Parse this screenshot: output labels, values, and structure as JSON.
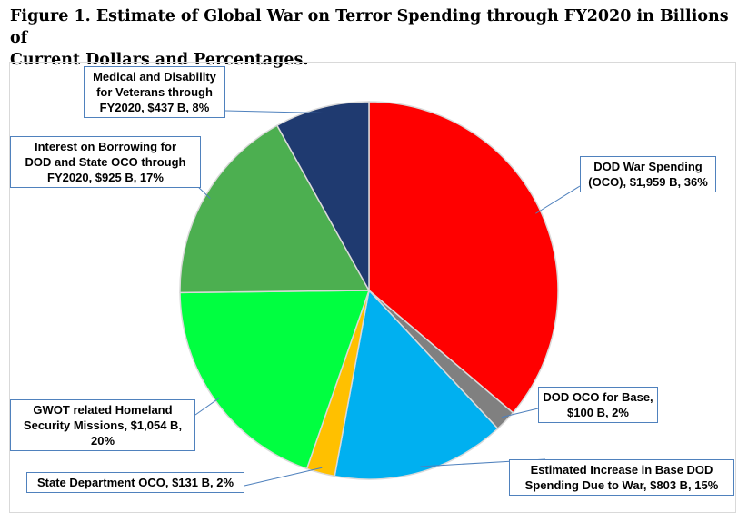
{
  "chart_data": {
    "type": "pie",
    "title": "Figure 1. Estimate of Global War on Terror Spending through FY2020 in Billions of Current Dollars and Percentages.",
    "title_lines": [
      "Figure 1. Estimate of Global War on Terror Spending through FY2020 in Billions of",
      "Current Dollars and Percentages."
    ],
    "start_angle_deg": 0,
    "direction": "clockwise",
    "slices": [
      {
        "name": "DOD War Spending (OCO)",
        "value": 1959,
        "percent": 36,
        "color": "#ff0000",
        "label_lines": [
          "DOD War Spending",
          "(OCO),  $1,959 B, 36%"
        ]
      },
      {
        "name": "DOD OCO for Base",
        "value": 100,
        "percent": 2,
        "color": "#808080",
        "label_lines": [
          "DOD OCO for Base,",
          "$100 B, 2%"
        ]
      },
      {
        "name": "Estimated Increase in Base DOD Spending Due to War",
        "value": 803,
        "percent": 15,
        "color": "#00b0f0",
        "label_lines": [
          "Estimated Increase in Base DOD",
          "Spending Due to War,  $803 B, 15%"
        ]
      },
      {
        "name": "State Department OCO",
        "value": 131,
        "percent": 2,
        "color": "#ffc000",
        "label_lines": [
          "State Department OCO,  $131 B, 2%"
        ]
      },
      {
        "name": "GWOT related Homeland Security Missions",
        "value": 1054,
        "percent": 20,
        "color": "#00ff40",
        "label_lines": [
          "GWOT related Homeland",
          "Security Missions,  $1,054 B,",
          "20%"
        ]
      },
      {
        "name": "Interest on Borrowing for DOD and State OCO through FY2020",
        "value": 925,
        "percent": 17,
        "color": "#4caf50",
        "label_lines": [
          "Interest on Borrowing for",
          "DOD and State OCO through",
          "FY2020,  $925 B, 17%"
        ]
      },
      {
        "name": "Medical and Disability for Veterans through FY2020",
        "value": 437,
        "percent": 8,
        "color": "#1f3a70",
        "label_lines": [
          "Medical and Disability",
          "for Veterans through",
          "FY2020,  $437 B, 8%"
        ]
      }
    ]
  }
}
